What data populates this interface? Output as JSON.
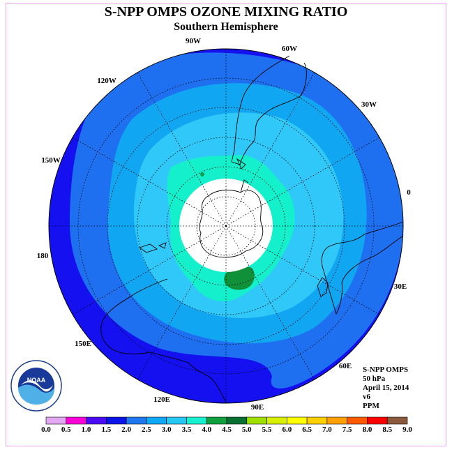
{
  "header": {
    "title": "S-NPP OMPS OZONE MIXING RATIO",
    "subtitle": "Southern Hemisphere"
  },
  "info": {
    "instrument": "S-NPP OMPS",
    "level": "50 hPa",
    "date": "April 15, 2014",
    "version": "v6",
    "units": "PPM"
  },
  "logo": {
    "text": "NOAA"
  },
  "longitude_labels": {
    "lon_90w": "90W",
    "lon_60w": "60W",
    "lon_30w": "30W",
    "lon_0": "0",
    "lon_30e": "30E",
    "lon_60e": "60E",
    "lon_90e": "90E",
    "lon_120e": "120E",
    "lon_150e": "150E",
    "lon_180": "180",
    "lon_150w": "150W",
    "lon_120w": "120W"
  },
  "colorbar": {
    "ticks": [
      "0.0",
      "0.5",
      "1.0",
      "1.5",
      "2.0",
      "2.5",
      "3.0",
      "3.5",
      "4.0",
      "4.5",
      "5.0",
      "5.5",
      "6.0",
      "6.5",
      "7.0",
      "7.5",
      "8.0",
      "8.5",
      "9.0"
    ],
    "colors": [
      "#b98cf0",
      "#e2a8f2",
      "#ff00d8",
      "#4b0cf5",
      "#0a14e6",
      "#1f78f0",
      "#10a8f5",
      "#28c8f5",
      "#18f0d0",
      "#10a040",
      "#087030",
      "#a0e000",
      "#d8f000",
      "#ffff00",
      "#ffd000",
      "#ffa000",
      "#ff5a00",
      "#ff0000",
      "#8b5a3c"
    ]
  },
  "map_colors": {
    "ring_outer": "#1410f0",
    "ring_2": "#1e70f0",
    "ring_3": "#11a6f2",
    "ring_4": "#30c8f8",
    "ring_5": "#14f0cc",
    "high_patch": "#109038",
    "small_patch": "#10a048",
    "pole_hole": "#ffffff"
  }
}
